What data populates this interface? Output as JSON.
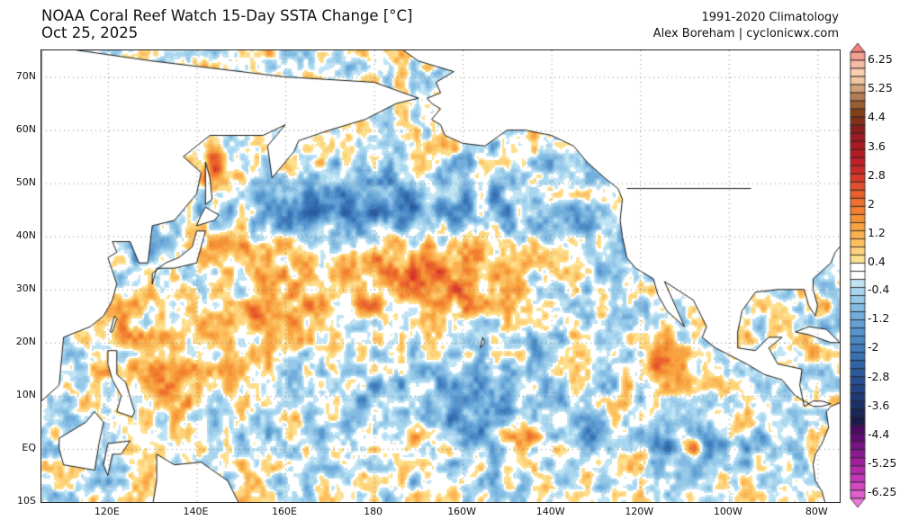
{
  "header": {
    "title_line1": "NOAA Coral Reef Watch 15-Day SSTA Change [°C]",
    "title_line2": "Oct 25, 2025",
    "climatology": "1991-2020 Climatology",
    "credit": "Alex Boreham | cyclonicwx.com"
  },
  "map": {
    "extent": {
      "lon_min": 105,
      "lon_max": 285,
      "lat_min": -10,
      "lat_max": 75
    },
    "lat_labels": [
      "70N",
      "60N",
      "50N",
      "40N",
      "30N",
      "20N",
      "10N",
      "EQ",
      "10S"
    ],
    "lat_values": [
      70,
      60,
      50,
      40,
      30,
      20,
      10,
      0,
      -10
    ],
    "lon_labels": [
      "120E",
      "140E",
      "160E",
      "180",
      "160W",
      "140W",
      "120W",
      "100W",
      "80W"
    ],
    "lon_values": [
      120,
      140,
      160,
      180,
      200,
      220,
      240,
      260,
      280
    ],
    "land_color": "#ffffff",
    "coast_color": "#000000"
  },
  "colorbar": {
    "labels": [
      "6.25",
      "5.25",
      "4.4",
      "3.6",
      "2.8",
      "2",
      "1.2",
      "0.4",
      "-0.4",
      "-1.2",
      "-2",
      "-2.8",
      "-3.6",
      "-4.4",
      "-5.25",
      "-6.25"
    ],
    "range": [
      -6.25,
      6.25
    ],
    "colors_high_to_low": [
      "#f08078",
      "#f4a093",
      "#f8bba8",
      "#fbd0b0",
      "#f0c8a0",
      "#d4a27a",
      "#b47c55",
      "#9a5e32",
      "#84401a",
      "#82301a",
      "#8a1e1c",
      "#9c1a20",
      "#a81a22",
      "#b41c24",
      "#c21e26",
      "#cc2a28",
      "#d83a2a",
      "#e0502c",
      "#e8602c",
      "#ee7030",
      "#f28030",
      "#f59238",
      "#f8a240",
      "#fab050",
      "#fcc060",
      "#fdd27a",
      "#fde08f",
      "#ffffff",
      "#ffffff",
      "#c0e4f4",
      "#a8d6ef",
      "#96c8e8",
      "#84bbe2",
      "#72aedc",
      "#62a0d4",
      "#5694cc",
      "#4a88c4",
      "#407cbc",
      "#3870b4",
      "#3064a8",
      "#2c5a9c",
      "#284f90",
      "#244484",
      "#203a76",
      "#1c3068",
      "#1a2558",
      "#1a1c48",
      "#4a0a60",
      "#600c74",
      "#761482",
      "#8c1a90",
      "#a0209e",
      "#b42aac",
      "#c438b8",
      "#d448c4",
      "#e060d0",
      "#ec78dc"
    ]
  }
}
